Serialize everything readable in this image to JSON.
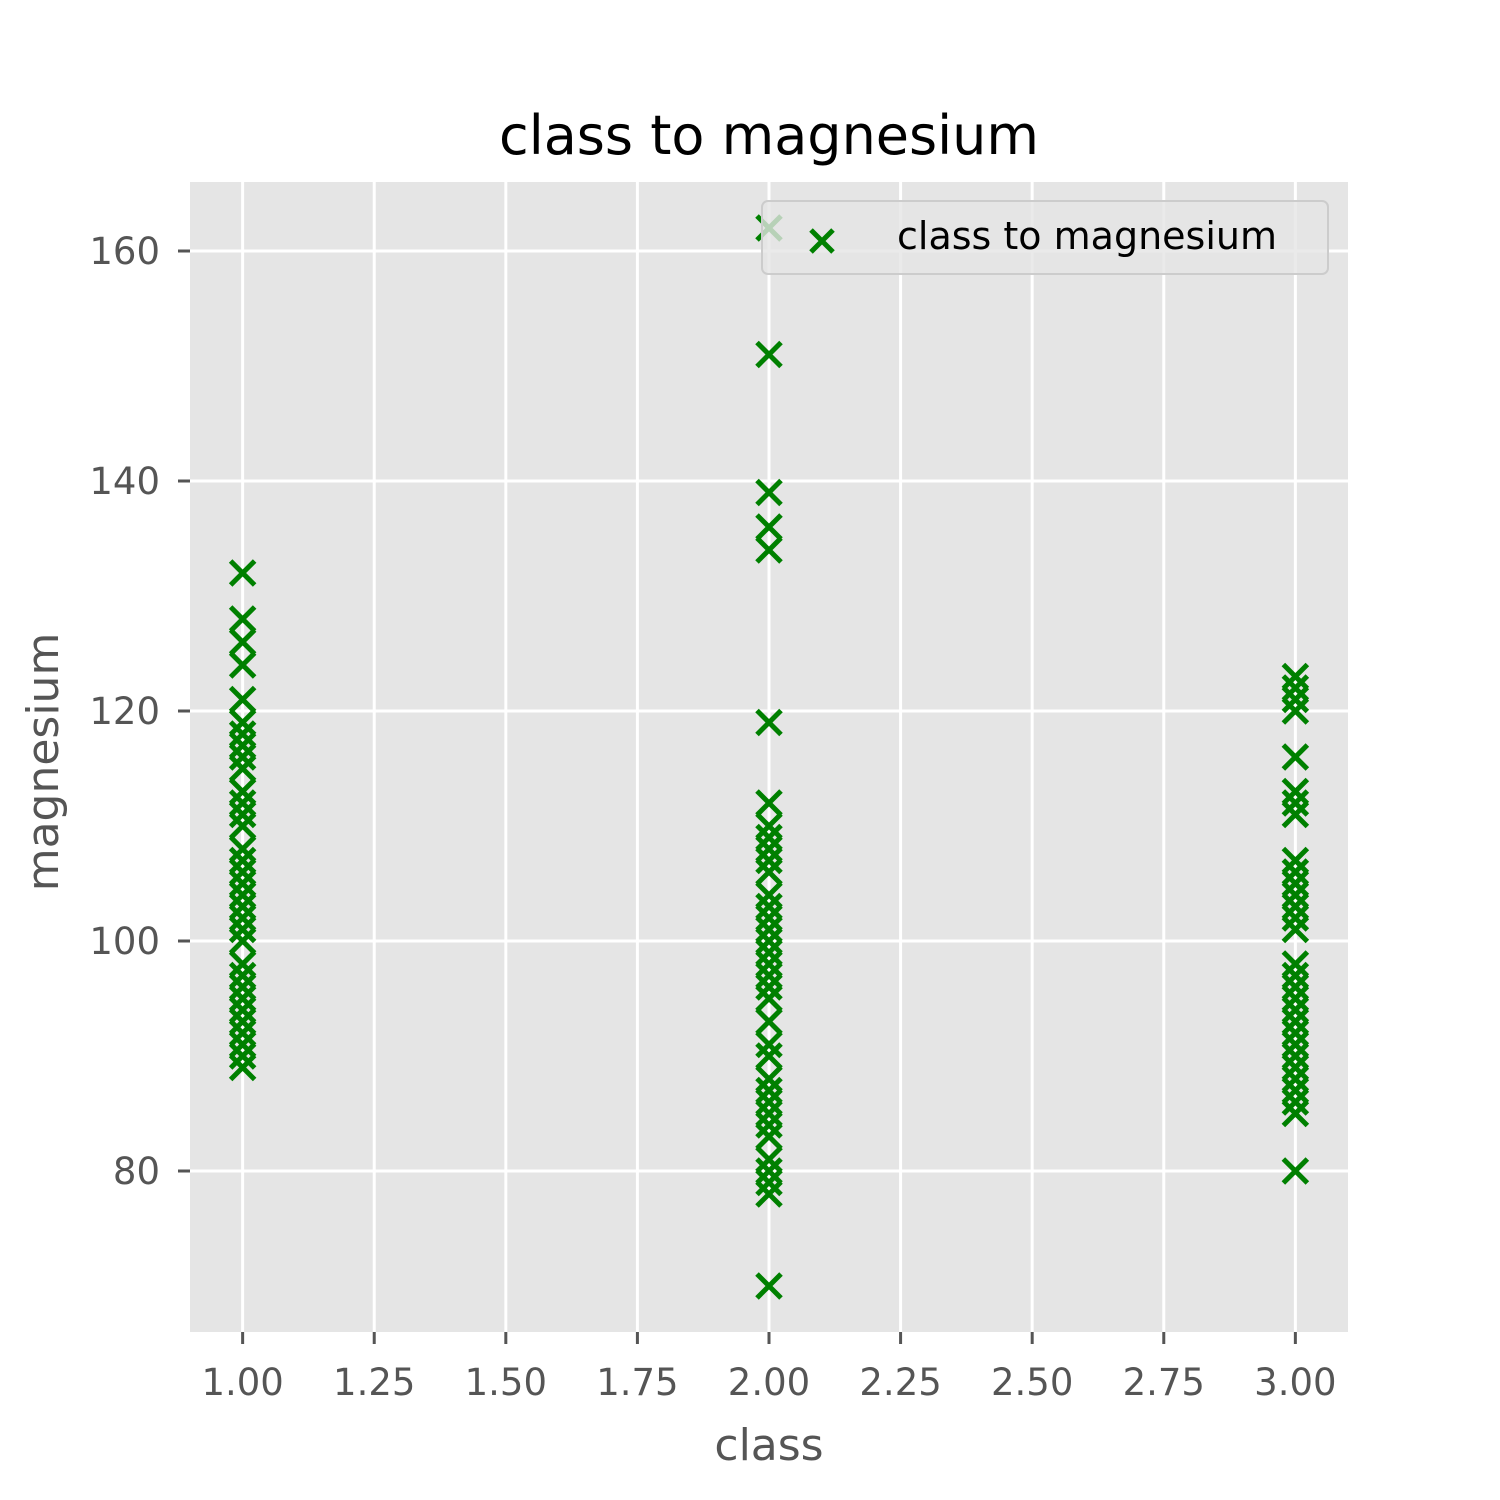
{
  "chart_data": {
    "type": "scatter",
    "title": "class to magnesium",
    "xlabel": "class",
    "ylabel": "magnesium",
    "xlim": [
      0.9,
      3.1
    ],
    "ylim": [
      66,
      166
    ],
    "xticks": [
      "1.00",
      "1.25",
      "1.50",
      "1.75",
      "2.00",
      "2.25",
      "2.50",
      "2.75",
      "3.00"
    ],
    "yticks": [
      "80",
      "100",
      "120",
      "140",
      "160"
    ],
    "grid": true,
    "legend_position": "top-right",
    "marker": "x",
    "color": "#008000",
    "series": [
      {
        "name": "class to magnesium",
        "points": [
          {
            "x": 1,
            "y": 89
          },
          {
            "x": 1,
            "y": 90
          },
          {
            "x": 1,
            "y": 91
          },
          {
            "x": 1,
            "y": 92
          },
          {
            "x": 1,
            "y": 93
          },
          {
            "x": 1,
            "y": 94
          },
          {
            "x": 1,
            "y": 95
          },
          {
            "x": 1,
            "y": 96
          },
          {
            "x": 1,
            "y": 97
          },
          {
            "x": 1,
            "y": 98
          },
          {
            "x": 1,
            "y": 100
          },
          {
            "x": 1,
            "y": 101
          },
          {
            "x": 1,
            "y": 102
          },
          {
            "x": 1,
            "y": 103
          },
          {
            "x": 1,
            "y": 104
          },
          {
            "x": 1,
            "y": 105
          },
          {
            "x": 1,
            "y": 106
          },
          {
            "x": 1,
            "y": 107
          },
          {
            "x": 1,
            "y": 108
          },
          {
            "x": 1,
            "y": 110
          },
          {
            "x": 1,
            "y": 111
          },
          {
            "x": 1,
            "y": 112
          },
          {
            "x": 1,
            "y": 113
          },
          {
            "x": 1,
            "y": 115
          },
          {
            "x": 1,
            "y": 116
          },
          {
            "x": 1,
            "y": 117
          },
          {
            "x": 1,
            "y": 118
          },
          {
            "x": 1,
            "y": 119
          },
          {
            "x": 1,
            "y": 121
          },
          {
            "x": 1,
            "y": 124
          },
          {
            "x": 1,
            "y": 126
          },
          {
            "x": 1,
            "y": 128
          },
          {
            "x": 1,
            "y": 132
          },
          {
            "x": 2,
            "y": 70
          },
          {
            "x": 2,
            "y": 78
          },
          {
            "x": 2,
            "y": 79
          },
          {
            "x": 2,
            "y": 80
          },
          {
            "x": 2,
            "y": 81
          },
          {
            "x": 2,
            "y": 83
          },
          {
            "x": 2,
            "y": 84
          },
          {
            "x": 2,
            "y": 85
          },
          {
            "x": 2,
            "y": 86
          },
          {
            "x": 2,
            "y": 87
          },
          {
            "x": 2,
            "y": 88
          },
          {
            "x": 2,
            "y": 90
          },
          {
            "x": 2,
            "y": 91
          },
          {
            "x": 2,
            "y": 93
          },
          {
            "x": 2,
            "y": 95
          },
          {
            "x": 2,
            "y": 96
          },
          {
            "x": 2,
            "y": 97
          },
          {
            "x": 2,
            "y": 98
          },
          {
            "x": 2,
            "y": 99
          },
          {
            "x": 2,
            "y": 100
          },
          {
            "x": 2,
            "y": 101
          },
          {
            "x": 2,
            "y": 102
          },
          {
            "x": 2,
            "y": 103
          },
          {
            "x": 2,
            "y": 104
          },
          {
            "x": 2,
            "y": 106
          },
          {
            "x": 2,
            "y": 107
          },
          {
            "x": 2,
            "y": 108
          },
          {
            "x": 2,
            "y": 109
          },
          {
            "x": 2,
            "y": 110
          },
          {
            "x": 2,
            "y": 112
          },
          {
            "x": 2,
            "y": 119
          },
          {
            "x": 2,
            "y": 134
          },
          {
            "x": 2,
            "y": 136
          },
          {
            "x": 2,
            "y": 139
          },
          {
            "x": 2,
            "y": 151
          },
          {
            "x": 2,
            "y": 162
          },
          {
            "x": 3,
            "y": 80
          },
          {
            "x": 3,
            "y": 85
          },
          {
            "x": 3,
            "y": 86
          },
          {
            "x": 3,
            "y": 87
          },
          {
            "x": 3,
            "y": 88
          },
          {
            "x": 3,
            "y": 89
          },
          {
            "x": 3,
            "y": 90
          },
          {
            "x": 3,
            "y": 91
          },
          {
            "x": 3,
            "y": 92
          },
          {
            "x": 3,
            "y": 93
          },
          {
            "x": 3,
            "y": 94
          },
          {
            "x": 3,
            "y": 95
          },
          {
            "x": 3,
            "y": 96
          },
          {
            "x": 3,
            "y": 97
          },
          {
            "x": 3,
            "y": 98
          },
          {
            "x": 3,
            "y": 101
          },
          {
            "x": 3,
            "y": 102
          },
          {
            "x": 3,
            "y": 103
          },
          {
            "x": 3,
            "y": 104
          },
          {
            "x": 3,
            "y": 105
          },
          {
            "x": 3,
            "y": 106
          },
          {
            "x": 3,
            "y": 107
          },
          {
            "x": 3,
            "y": 111
          },
          {
            "x": 3,
            "y": 112
          },
          {
            "x": 3,
            "y": 113
          },
          {
            "x": 3,
            "y": 116
          },
          {
            "x": 3,
            "y": 120
          },
          {
            "x": 3,
            "y": 121
          },
          {
            "x": 3,
            "y": 122
          },
          {
            "x": 3,
            "y": 123
          }
        ]
      }
    ]
  }
}
